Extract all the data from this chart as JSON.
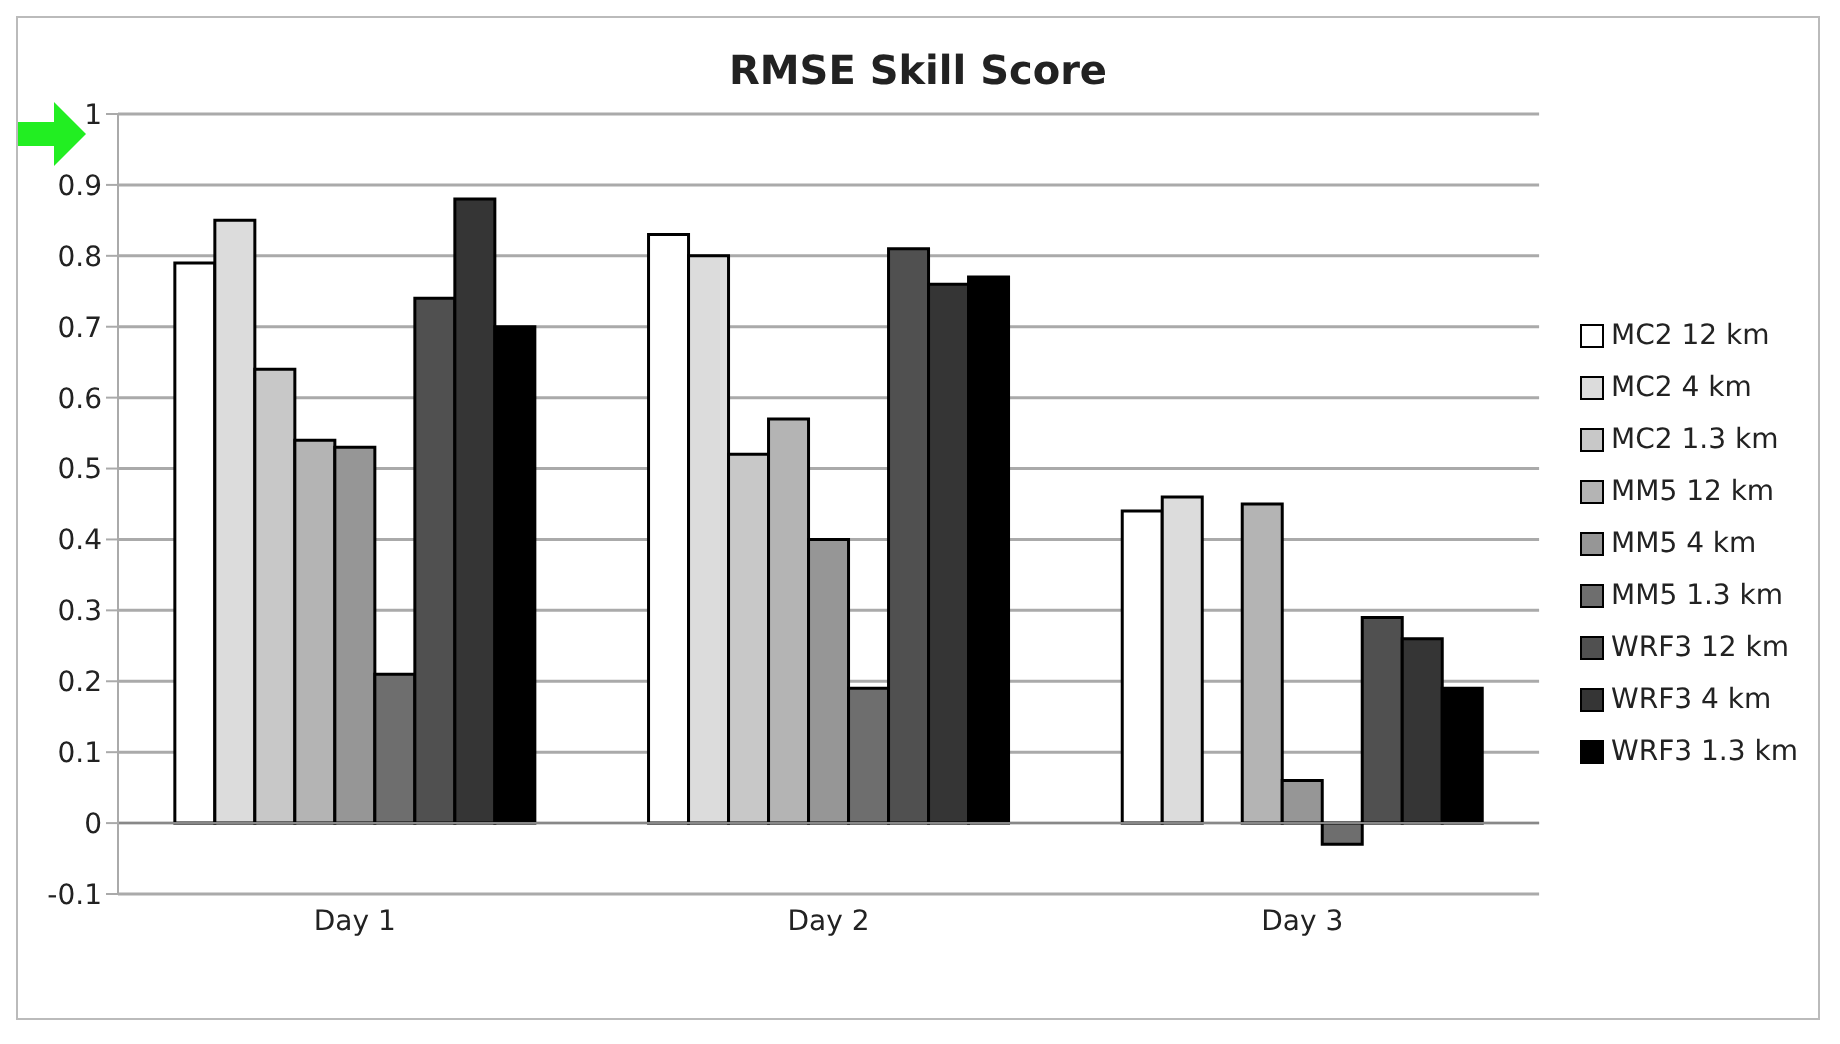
{
  "chart_data": {
    "type": "bar",
    "title": "RMSE Skill Score",
    "categories": [
      "Day 1",
      "Day 2",
      "Day 3"
    ],
    "series": [
      {
        "name": "MC2 12 km",
        "color": "#ffffff",
        "values": [
          0.79,
          0.83,
          0.44
        ]
      },
      {
        "name": "MC2 4 km",
        "color": "#dcdcdc",
        "values": [
          0.85,
          0.8,
          0.46
        ]
      },
      {
        "name": "MC2 1.3 km",
        "color": "#c8c8c8",
        "values": [
          0.64,
          0.52,
          null
        ]
      },
      {
        "name": "MM5 12 km",
        "color": "#b4b4b4",
        "values": [
          0.54,
          0.57,
          0.45
        ]
      },
      {
        "name": "MM5 4 km",
        "color": "#969696",
        "values": [
          0.53,
          0.4,
          0.06
        ]
      },
      {
        "name": "MM5 1.3 km",
        "color": "#6e6e6e",
        "values": [
          0.21,
          0.19,
          -0.03
        ]
      },
      {
        "name": "WRF3 12 km",
        "color": "#505050",
        "values": [
          0.74,
          0.81,
          0.29
        ]
      },
      {
        "name": "WRF3 4 km",
        "color": "#353535",
        "values": [
          0.88,
          0.76,
          0.26
        ]
      },
      {
        "name": "WRF3 1.3 km",
        "color": "#000000",
        "values": [
          0.7,
          0.77,
          0.19
        ]
      }
    ],
    "ylim": [
      -0.1,
      1
    ],
    "yticks": [
      -0.1,
      0,
      0.1,
      0.2,
      0.3,
      0.4,
      0.5,
      0.6,
      0.7,
      0.8,
      0.9,
      1
    ],
    "grid": "y",
    "legend": "right"
  }
}
